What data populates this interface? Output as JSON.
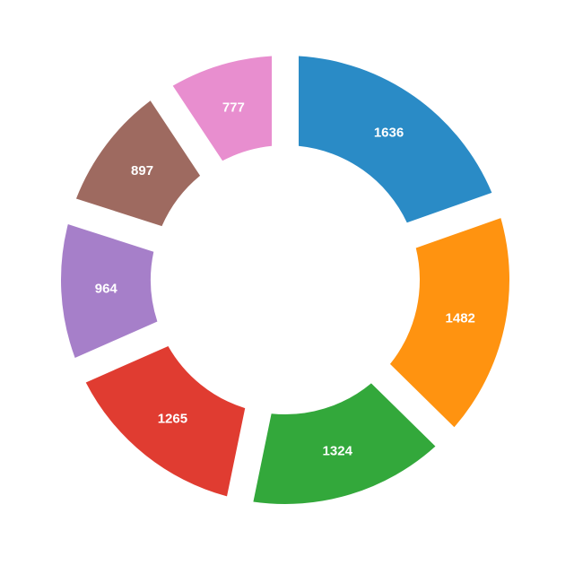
{
  "chart_data": {
    "type": "donut",
    "values": [
      1636,
      1482,
      1324,
      1265,
      964,
      897,
      777
    ],
    "colors": [
      "#2a8bc6",
      "#ff9310",
      "#33a83b",
      "#e03c31",
      "#a67fc9",
      "#9e6a60",
      "#e88ecf"
    ]
  }
}
